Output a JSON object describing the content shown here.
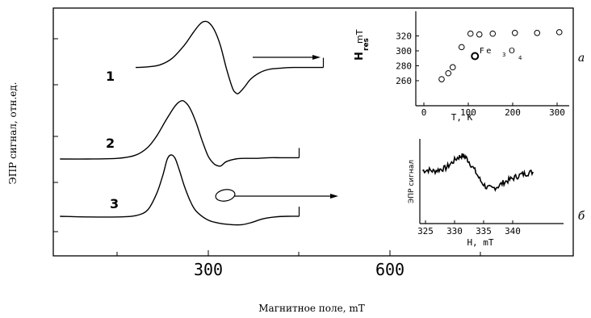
{
  "chart_data": [
    {
      "type": "line",
      "xlabel": "Магнитное поле, mT",
      "ylabel": "ЭПР сигнал, отн.ед.",
      "x_ticks": [
        "300",
        "600"
      ],
      "xlim": [
        50,
        875
      ],
      "series": [
        {
          "name": "1",
          "x": [
            180,
            200,
            220,
            240,
            260,
            275,
            285,
            292,
            300,
            310,
            320,
            330,
            340,
            345,
            350,
            360,
            370,
            385,
            400,
            420,
            440,
            460,
            480,
            490
          ],
          "y": [
            0.9,
            0.95,
            1.1,
            1.6,
            2.6,
            3.6,
            4.2,
            4.45,
            4.4,
            3.8,
            2.6,
            0.8,
            -0.7,
            -1.05,
            -1.1,
            -0.6,
            0.0,
            0.5,
            0.75,
            0.85,
            0.9,
            0.9,
            0.9,
            0.9
          ]
        },
        {
          "name": "2",
          "x": [
            55,
            100,
            150,
            180,
            200,
            215,
            230,
            245,
            255,
            262,
            270,
            280,
            290,
            300,
            310,
            318,
            322,
            330,
            345,
            360,
            380,
            400,
            420,
            440,
            450
          ],
          "y": [
            0.0,
            0.0,
            0.05,
            0.3,
            0.9,
            1.8,
            3.0,
            4.1,
            4.5,
            4.4,
            3.9,
            2.8,
            1.4,
            0.2,
            -0.4,
            -0.55,
            -0.5,
            -0.2,
            0.0,
            0.05,
            0.05,
            0.1,
            0.1,
            0.1,
            0.1
          ]
        },
        {
          "name": "3",
          "x": [
            55,
            100,
            150,
            180,
            200,
            215,
            225,
            232,
            238,
            245,
            252,
            260,
            270,
            280,
            300,
            320,
            340,
            355,
            370,
            390,
            410,
            430,
            450
          ],
          "y": [
            0.0,
            -0.05,
            -0.05,
            0.05,
            0.5,
            1.8,
            3.2,
            4.4,
            4.75,
            4.5,
            3.6,
            2.4,
            1.2,
            0.4,
            -0.3,
            -0.55,
            -0.65,
            -0.65,
            -0.5,
            -0.2,
            -0.05,
            0.0,
            0.0
          ]
        }
      ]
    },
    {
      "type": "scatter",
      "panel_label": "a",
      "xlabel": "T, K",
      "ylabel_main": "H",
      "ylabel_sub": "res",
      "ylabel_unit": "mT",
      "annotation": "Fe3O4",
      "annotation_main": "Fe",
      "annotation_sub": "3",
      "annotation_tail": "O",
      "annotation_tail_sub": "4",
      "x_ticks": [
        0,
        100,
        200,
        300
      ],
      "y_ticks": [
        260,
        280,
        300,
        320
      ],
      "xlim": [
        0,
        320
      ],
      "ylim": [
        250,
        330
      ],
      "x": [
        40,
        55,
        65,
        85,
        105,
        125,
        155,
        205,
        255,
        305
      ],
      "y": [
        262,
        270,
        278,
        305,
        323,
        322,
        323,
        324,
        324,
        325
      ]
    },
    {
      "type": "line",
      "panel_label": "б",
      "xlabel": "H, mT",
      "ylabel": "ЭПР сигнал",
      "x_ticks": [
        325,
        330,
        335,
        340
      ],
      "xlim": [
        324,
        345
      ],
      "ylim": [
        -4,
        4
      ],
      "x": [
        324.5,
        325.5,
        326.5,
        327.5,
        328.5,
        329.5,
        330.5,
        331.2,
        331.8,
        332.5,
        333.5,
        334.5,
        335.5,
        336.5,
        337.5,
        338.5,
        339.5,
        340.5,
        341.5,
        342.5,
        343.5
      ],
      "y": [
        0.2,
        0.3,
        0.1,
        0.4,
        0.6,
        1.4,
        2.2,
        2.5,
        2.4,
        1.6,
        0.2,
        -1.4,
        -2.4,
        -2.6,
        -2.2,
        -1.6,
        -1.2,
        -0.8,
        -0.4,
        -0.2,
        0.0
      ]
    }
  ]
}
